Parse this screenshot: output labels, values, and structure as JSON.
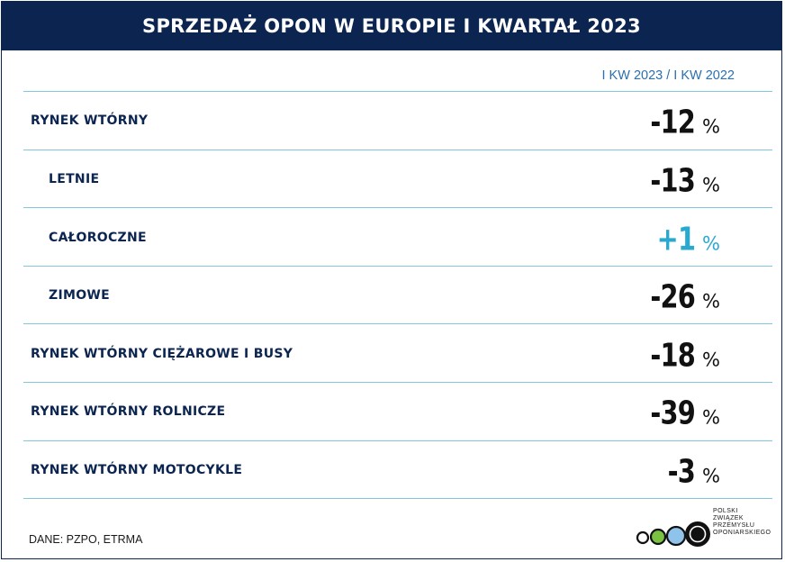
{
  "chart_data": {
    "type": "table",
    "title": "SPRZEDAŻ OPON W EUROPIE I KWARTAŁ 2023",
    "column_header": "I KW 2023 / I KW 2022",
    "unit": "%",
    "rows": [
      {
        "label": "RYNEK WTÓRNY",
        "value": "-12",
        "indent": false,
        "positive": false
      },
      {
        "label": "LETNIE",
        "value": "-13",
        "indent": true,
        "positive": false
      },
      {
        "label": "CAŁOROCZNE",
        "value": "+1",
        "indent": true,
        "positive": true
      },
      {
        "label": "ZIMOWE",
        "value": "-26",
        "indent": true,
        "positive": false
      },
      {
        "label": "RYNEK WTÓRNY CIĘŻAROWE I BUSY",
        "value": "-18",
        "indent": false,
        "positive": false
      },
      {
        "label": "RYNEK WTÓRNY ROLNICZE",
        "value": "-39",
        "indent": false,
        "positive": false
      },
      {
        "label": "RYNEK WTÓRNY MOTOCYKLE",
        "value": "-3",
        "indent": false,
        "positive": false
      }
    ],
    "source": "DANE: PZPO, ETRMA"
  },
  "logo": {
    "lines": [
      "POLSKI",
      "ZWIĄZEK",
      "PRZEMYSŁU",
      "OPONIARSKIEGO"
    ]
  },
  "colors": {
    "navy": "#0c2550",
    "positive": "#2aa9cf",
    "separator": "#7fc8e0"
  }
}
